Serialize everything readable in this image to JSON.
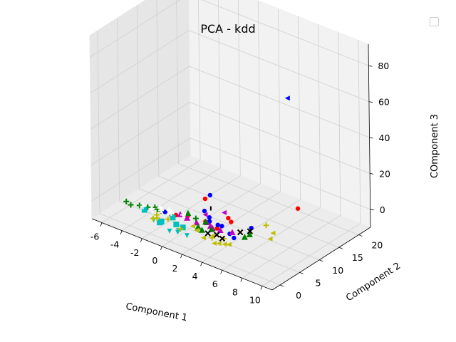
{
  "chart_data": {
    "type": "scatter",
    "projection": "3d",
    "title": "PCA - kdd",
    "xlabel": "Component 1",
    "ylabel": "Component 2",
    "zlabel": "COmponent 3",
    "xlim": [
      -7,
      11
    ],
    "ylim": [
      -2,
      23
    ],
    "zlim": [
      -10,
      92
    ],
    "x_ticks": [
      -6,
      -4,
      -2,
      0,
      2,
      4,
      6,
      8,
      10
    ],
    "y_ticks": [
      0,
      5,
      10,
      15,
      20
    ],
    "z_ticks": [
      0,
      20,
      40,
      60,
      80
    ],
    "grid": true,
    "legend": "top-right (empty)",
    "series": [
      {
        "color": "#ff0000",
        "marker": "circle",
        "points": [
          [
            1.2,
            6,
            8
          ],
          [
            0.5,
            3.3,
            0.5
          ],
          [
            2.2,
            3.5,
            1
          ],
          [
            -0.4,
            2.6,
            0.2
          ],
          [
            3.4,
            3.4,
            0
          ],
          [
            3.9,
            5.7,
            1.5
          ],
          [
            3.3,
            6.5,
            1.2
          ],
          [
            6.6,
            15.8,
            0.8
          ]
        ]
      },
      {
        "color": "#0000ff",
        "marker": "circle",
        "points": [
          [
            1.5,
            6.5,
            10
          ],
          [
            1.2,
            5.8,
            1.5
          ],
          [
            2.3,
            4.3,
            0.2
          ],
          [
            2,
            5,
            0.8
          ],
          [
            3.2,
            4.1,
            0.5
          ],
          [
            3.6,
            4.1,
            0.8
          ],
          [
            6,
            5.5,
            3
          ],
          [
            5.4,
            2.6,
            0.2
          ],
          [
            4.7,
            3.3,
            0
          ],
          [
            -1.4,
            2.4,
            0
          ]
        ]
      },
      {
        "color": "#0000ff",
        "marker": "triangle-left",
        "points": [
          [
            10.2,
            4.5,
            86
          ]
        ]
      },
      {
        "color": "#000000",
        "marker": "vline",
        "points": [
          [
            1.6,
            6.4,
            3
          ]
        ]
      },
      {
        "color": "#bf00bf",
        "marker": "triangle-left",
        "points": [
          [
            3.2,
            5.8,
            5
          ],
          [
            1.5,
            5.3,
            0.8
          ]
        ]
      },
      {
        "color": "#bf00bf",
        "marker": "triangle-up",
        "points": [
          [
            1.5,
            3,
            -0.5
          ],
          [
            2.7,
            3.5,
            -0.5
          ],
          [
            3.8,
            3.2,
            0
          ],
          [
            4.8,
            3.7,
            0.3
          ],
          [
            0.6,
            2.9,
            0.2
          ],
          [
            2.3,
            3.6,
            0.5
          ],
          [
            3.1,
            3,
            -0.2
          ],
          [
            -0.2,
            3.2,
            0
          ]
        ]
      },
      {
        "color": "#008000",
        "marker": "plus",
        "points": [
          [
            -3.6,
            1.5,
            0
          ],
          [
            -2.9,
            1.8,
            0.2
          ],
          [
            -2.1,
            2.2,
            0.2
          ],
          [
            -0.5,
            1.9,
            0.6
          ],
          [
            -1.7,
            2.1,
            0.3
          ],
          [
            -4.2,
            0.8,
            0
          ],
          [
            -2.5,
            2.6,
            -0.1
          ],
          [
            1.2,
            3.6,
            0.4
          ],
          [
            -4.8,
            1.2,
            0
          ]
        ]
      },
      {
        "color": "#008000",
        "marker": "triangle-up",
        "points": [
          [
            2.1,
            1.9,
            0
          ],
          [
            6.1,
            4.8,
            0.5
          ],
          [
            2.3,
            3.3,
            1.2
          ],
          [
            3.2,
            2.5,
            0.2
          ],
          [
            6,
            3.8,
            0.2
          ],
          [
            0.3,
            3.9,
            0.8
          ],
          [
            2.6,
            1.6,
            -0.3
          ]
        ]
      },
      {
        "color": "#00bfbf",
        "marker": "square",
        "points": [
          [
            -0.8,
            -0.5,
            -0.5
          ],
          [
            -0.7,
            -0.3,
            0
          ],
          [
            0.5,
            0.4,
            0
          ],
          [
            1.2,
            0.3,
            0
          ],
          [
            -2.9,
            1,
            -0.2
          ],
          [
            -0.4,
            1.8,
            -0.1
          ]
        ]
      },
      {
        "color": "#00bfbf",
        "marker": "triangle-down",
        "points": [
          [
            0.7,
            -1.8,
            0
          ],
          [
            1.4,
            -1.5,
            0.5
          ],
          [
            2.2,
            -1.2,
            0
          ],
          [
            -1.4,
            -0.5,
            -0.3
          ],
          [
            1.2,
            -0.8,
            0
          ]
        ]
      },
      {
        "color": "#bfbf00",
        "marker": "plus",
        "points": [
          [
            -1.5,
            -0.4,
            0
          ],
          [
            -1.3,
            0.1,
            0
          ],
          [
            -1.6,
            0.8,
            0.2
          ],
          [
            1.2,
            -0.3,
            0
          ],
          [
            -0.4,
            0.6,
            0.6
          ],
          [
            4,
            0.6,
            0
          ],
          [
            4.8,
            1.5,
            0
          ],
          [
            6.3,
            8.5,
            1
          ]
        ]
      },
      {
        "color": "#bfbf00",
        "marker": "triangle-left",
        "points": [
          [
            4.6,
            -0.3,
            -0.5
          ],
          [
            4.9,
            0.1,
            -0.5
          ],
          [
            5.3,
            0.5,
            -0.6
          ],
          [
            5.6,
            0.9,
            -0.6
          ],
          [
            3.4,
            0,
            -0.5
          ],
          [
            3.8,
            1.3,
            -0.4
          ],
          [
            1.7,
            1.6,
            0
          ],
          [
            2.3,
            1.1,
            -0.3
          ],
          [
            7.7,
            6,
            0
          ],
          [
            7.4,
            7.5,
            0.5
          ]
        ]
      },
      {
        "color": "#000000",
        "marker": "x",
        "points": [
          [
            4,
            1.8,
            0
          ],
          [
            3.3,
            1.3,
            0
          ],
          [
            4.7,
            1.4,
            0
          ],
          [
            5.7,
            5.9,
            0
          ],
          [
            5.2,
            4.7,
            0
          ]
        ]
      },
      {
        "color": "#ffffff",
        "marker": "plus",
        "points": [
          [
            -3.3,
            1.6,
            0
          ],
          [
            -2.5,
            1.9,
            0
          ],
          [
            -1.8,
            2.4,
            0
          ],
          [
            -0.9,
            2.7,
            0
          ],
          [
            -1.3,
            3.2,
            0
          ],
          [
            0,
            3.4,
            0
          ],
          [
            -2.1,
            2.9,
            0
          ]
        ]
      }
    ]
  }
}
